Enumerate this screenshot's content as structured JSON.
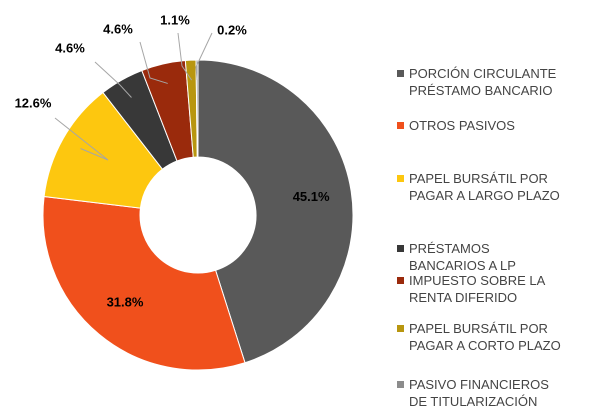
{
  "chart_data": {
    "type": "donut",
    "categories": [
      "PORCIÓN CIRCULANTE\nPRÉSTAMO BANCARIO",
      "OTROS PASIVOS",
      "PAPEL BURSÁTIL  POR\nPAGAR A LARGO PLAZO",
      "PRÉSTAMOS\nBANCARIOS A LP",
      "IMPUESTO SOBRE LA\nRENTA DIFERIDO",
      "PAPEL BURSÁTIL  POR\nPAGAR A CORTO PLAZO",
      "PASIVO FINANCIEROS\nDE TITULARIZACIÓN"
    ],
    "values": [
      45.1,
      31.8,
      12.6,
      4.6,
      4.6,
      1.1,
      0.2
    ],
    "value_labels": [
      "45.1%",
      "31.8%",
      "12.6%",
      "4.6%",
      "4.6%",
      "1.1%",
      "0.2%"
    ],
    "colors": [
      "#595959",
      "#f0501c",
      "#fdc70f",
      "#383838",
      "#9a2a0c",
      "#b8960f",
      "#8c8c8c"
    ],
    "legend": "right"
  }
}
